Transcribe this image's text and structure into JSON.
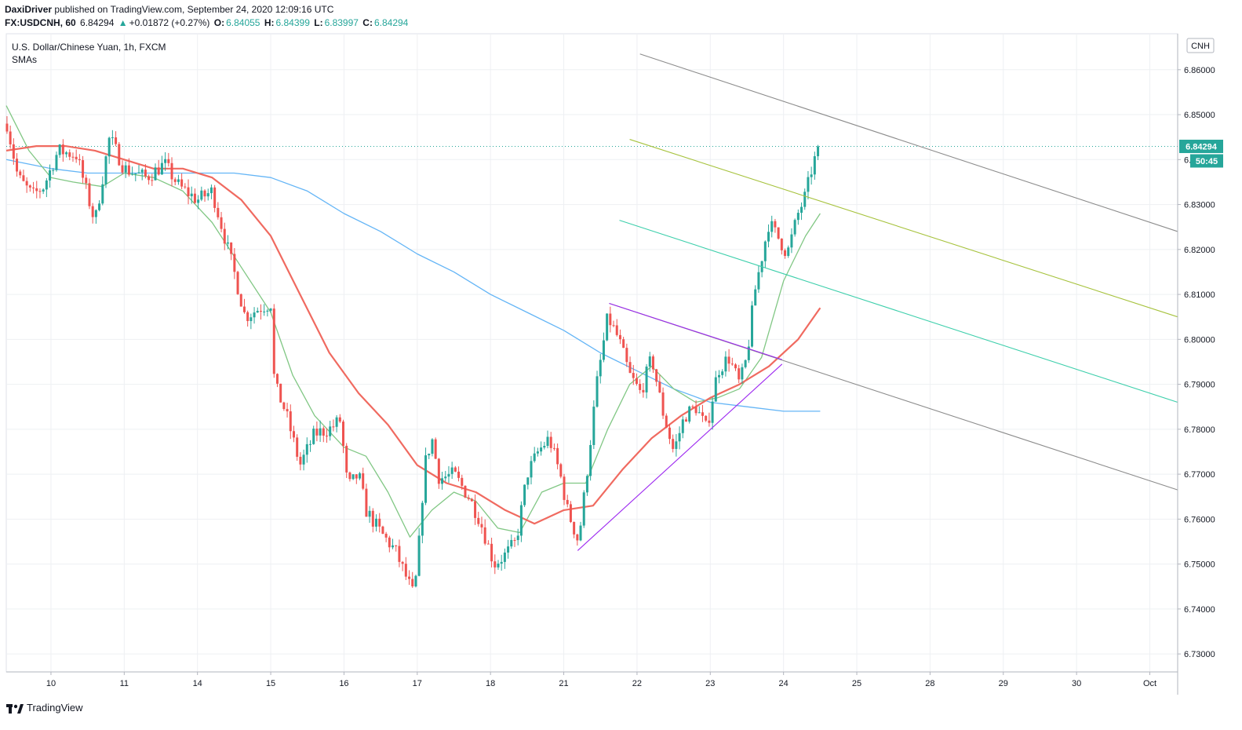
{
  "header": {
    "publisher": "DaxiDriver",
    "published_text": "published on TradingView.com, September 24, 2020 12:09:16 UTC",
    "symbol": "FX:USDCNH, 60",
    "last": "6.84294",
    "change_arrow": "▲",
    "change": "+0.01872 (+0.27%)",
    "o_label": "O:",
    "o_value": "6.84055",
    "h_label": "H:",
    "h_value": "6.84399",
    "l_label": "L:",
    "l_value": "6.83997",
    "c_label": "C:",
    "c_value": "6.84294"
  },
  "legend": {
    "title": "U.S. Dollar/Chinese Yuan, 1h, FXCM",
    "indicator": "SMAs"
  },
  "currency_badge": "CNH",
  "price_badge": "6.84294",
  "countdown_badge": "50:45",
  "footer": {
    "brand": "TradingView"
  },
  "colors": {
    "up": "#26a69a",
    "down": "#ef5350",
    "sma_fast": "#81c784",
    "sma_mid": "#f06a60",
    "sma_slow": "#64b5f6",
    "channel_outer": "#8c8c8c",
    "channel_upper_mid": "#a6c23c",
    "channel_lower_mid": "#3dcfab",
    "triangle": "#9c27f0",
    "grid": "#eef0f3"
  },
  "chart_data": {
    "type": "candlestick",
    "title": "U.S. Dollar/Chinese Yuan, 1h, FXCM",
    "ylim": [
      6.726,
      6.868
    ],
    "y_ticks": [
      6.73,
      6.74,
      6.75,
      6.76,
      6.77,
      6.78,
      6.79,
      6.8,
      6.81,
      6.82,
      6.83,
      6.84,
      6.85,
      6.86
    ],
    "x_ticks": [
      {
        "label": "10",
        "t": 1
      },
      {
        "label": "11",
        "t": 2
      },
      {
        "label": "14",
        "t": 3
      },
      {
        "label": "15",
        "t": 4
      },
      {
        "label": "16",
        "t": 5
      },
      {
        "label": "17",
        "t": 6
      },
      {
        "label": "18",
        "t": 7
      },
      {
        "label": "21",
        "t": 8
      },
      {
        "label": "22",
        "t": 9
      },
      {
        "label": "23",
        "t": 10
      },
      {
        "label": "24",
        "t": 11
      },
      {
        "label": "25",
        "t": 12
      },
      {
        "label": "28",
        "t": 13
      },
      {
        "label": "29",
        "t": 14
      },
      {
        "label": "30",
        "t": 15
      },
      {
        "label": "Oct",
        "t": 16
      }
    ],
    "xlim": [
      0.39,
      16.38
    ],
    "last_price": 6.84294,
    "price_path": [
      [
        0.4,
        6.848
      ],
      [
        0.55,
        6.836
      ],
      [
        0.75,
        6.832
      ],
      [
        0.9,
        6.834
      ],
      [
        1.1,
        6.842
      ],
      [
        1.35,
        6.841
      ],
      [
        1.6,
        6.826
      ],
      [
        1.8,
        6.845
      ],
      [
        2.0,
        6.838
      ],
      [
        2.3,
        6.836
      ],
      [
        2.55,
        6.839
      ],
      [
        2.75,
        6.834
      ],
      [
        3.0,
        6.831
      ],
      [
        3.2,
        6.833
      ],
      [
        3.35,
        6.824
      ],
      [
        3.5,
        6.815
      ],
      [
        3.65,
        6.805
      ],
      [
        3.85,
        6.807
      ],
      [
        4.0,
        6.808
      ],
      [
        4.05,
        6.79
      ],
      [
        4.2,
        6.784
      ],
      [
        4.4,
        6.772
      ],
      [
        4.6,
        6.779
      ],
      [
        4.8,
        6.78
      ],
      [
        4.95,
        6.782
      ],
      [
        5.05,
        6.767
      ],
      [
        5.2,
        6.77
      ],
      [
        5.3,
        6.762
      ],
      [
        5.5,
        6.757
      ],
      [
        5.7,
        6.753
      ],
      [
        5.85,
        6.747
      ],
      [
        5.95,
        6.743
      ],
      [
        6.0,
        6.749
      ],
      [
        6.1,
        6.772
      ],
      [
        6.2,
        6.778
      ],
      [
        6.3,
        6.769
      ],
      [
        6.5,
        6.77
      ],
      [
        6.7,
        6.765
      ],
      [
        6.85,
        6.76
      ],
      [
        6.95,
        6.755
      ],
      [
        7.05,
        6.75
      ],
      [
        7.2,
        6.752
      ],
      [
        7.35,
        6.755
      ],
      [
        7.5,
        6.77
      ],
      [
        7.65,
        6.775
      ],
      [
        7.8,
        6.778
      ],
      [
        7.95,
        6.77
      ],
      [
        8.05,
        6.762
      ],
      [
        8.2,
        6.755
      ],
      [
        8.3,
        6.768
      ],
      [
        8.45,
        6.79
      ],
      [
        8.6,
        6.805
      ],
      [
        8.75,
        6.8
      ],
      [
        8.9,
        6.792
      ],
      [
        9.05,
        6.788
      ],
      [
        9.2,
        6.796
      ],
      [
        9.35,
        6.784
      ],
      [
        9.5,
        6.775
      ],
      [
        9.65,
        6.783
      ],
      [
        9.8,
        6.785
      ],
      [
        9.95,
        6.78
      ],
      [
        10.1,
        6.793
      ],
      [
        10.25,
        6.796
      ],
      [
        10.4,
        6.79
      ],
      [
        10.5,
        6.796
      ],
      [
        10.6,
        6.81
      ],
      [
        10.7,
        6.818
      ],
      [
        10.8,
        6.826
      ],
      [
        10.95,
        6.822
      ],
      [
        11.05,
        6.819
      ],
      [
        11.2,
        6.828
      ],
      [
        11.3,
        6.832
      ],
      [
        11.4,
        6.839
      ],
      [
        11.5,
        6.843
      ]
    ],
    "sma_fast": [
      [
        0.39,
        6.852
      ],
      [
        0.7,
        6.842
      ],
      [
        1.0,
        6.836
      ],
      [
        1.3,
        6.835
      ],
      [
        1.7,
        6.834
      ],
      [
        2.0,
        6.837
      ],
      [
        2.4,
        6.836
      ],
      [
        2.8,
        6.833
      ],
      [
        3.2,
        6.826
      ],
      [
        3.6,
        6.816
      ],
      [
        4.0,
        6.806
      ],
      [
        4.3,
        6.792
      ],
      [
        4.6,
        6.783
      ],
      [
        5.0,
        6.776
      ],
      [
        5.3,
        6.774
      ],
      [
        5.6,
        6.766
      ],
      [
        5.9,
        6.756
      ],
      [
        6.2,
        6.762
      ],
      [
        6.5,
        6.766
      ],
      [
        6.8,
        6.764
      ],
      [
        7.1,
        6.758
      ],
      [
        7.4,
        6.757
      ],
      [
        7.7,
        6.766
      ],
      [
        8.0,
        6.768
      ],
      [
        8.3,
        6.768
      ],
      [
        8.6,
        6.78
      ],
      [
        8.9,
        6.79
      ],
      [
        9.2,
        6.794
      ],
      [
        9.5,
        6.789
      ],
      [
        9.8,
        6.786
      ],
      [
        10.1,
        6.787
      ],
      [
        10.4,
        6.789
      ],
      [
        10.7,
        6.796
      ],
      [
        11.0,
        6.813
      ],
      [
        11.3,
        6.823
      ],
      [
        11.5,
        6.828
      ]
    ],
    "sma_mid": [
      [
        0.39,
        6.842
      ],
      [
        0.8,
        6.843
      ],
      [
        1.2,
        6.843
      ],
      [
        1.6,
        6.842
      ],
      [
        2.0,
        6.84
      ],
      [
        2.4,
        6.838
      ],
      [
        2.8,
        6.838
      ],
      [
        3.2,
        6.836
      ],
      [
        3.6,
        6.831
      ],
      [
        4.0,
        6.823
      ],
      [
        4.4,
        6.81
      ],
      [
        4.8,
        6.797
      ],
      [
        5.2,
        6.788
      ],
      [
        5.6,
        6.781
      ],
      [
        6.0,
        6.772
      ],
      [
        6.4,
        6.768
      ],
      [
        6.8,
        6.766
      ],
      [
        7.2,
        6.762
      ],
      [
        7.6,
        6.759
      ],
      [
        8.0,
        6.762
      ],
      [
        8.4,
        6.763
      ],
      [
        8.8,
        6.771
      ],
      [
        9.2,
        6.778
      ],
      [
        9.6,
        6.783
      ],
      [
        10.0,
        6.787
      ],
      [
        10.4,
        6.79
      ],
      [
        10.8,
        6.794
      ],
      [
        11.2,
        6.8
      ],
      [
        11.5,
        6.807
      ]
    ],
    "sma_slow": [
      [
        0.39,
        6.84
      ],
      [
        1.0,
        6.838
      ],
      [
        1.5,
        6.837
      ],
      [
        2.0,
        6.837
      ],
      [
        2.5,
        6.837
      ],
      [
        3.0,
        6.837
      ],
      [
        3.5,
        6.837
      ],
      [
        4.0,
        6.836
      ],
      [
        4.5,
        6.833
      ],
      [
        5.0,
        6.828
      ],
      [
        5.5,
        6.824
      ],
      [
        6.0,
        6.819
      ],
      [
        6.5,
        6.815
      ],
      [
        7.0,
        6.81
      ],
      [
        7.5,
        6.806
      ],
      [
        8.0,
        6.802
      ],
      [
        8.5,
        6.797
      ],
      [
        9.0,
        6.793
      ],
      [
        9.5,
        6.789
      ],
      [
        10.0,
        6.786
      ],
      [
        10.5,
        6.785
      ],
      [
        11.0,
        6.784
      ],
      [
        11.5,
        6.784
      ]
    ],
    "drawings": [
      {
        "name": "channel-upper-line",
        "color_key": "channel_outer",
        "p1": [
          9.04,
          6.8635
        ],
        "p2": [
          16.38,
          6.824
        ]
      },
      {
        "name": "channel-upper-mid-line",
        "color_key": "channel_upper_mid",
        "p1": [
          8.9,
          6.8445
        ],
        "p2": [
          16.38,
          6.805
        ]
      },
      {
        "name": "channel-lower-mid-line",
        "color_key": "channel_lower_mid",
        "p1": [
          8.76,
          6.8265
        ],
        "p2": [
          16.38,
          6.786
        ]
      },
      {
        "name": "channel-lower-line",
        "color_key": "channel_outer",
        "p1": [
          8.62,
          6.808
        ],
        "p2": [
          16.38,
          6.7665
        ]
      },
      {
        "name": "triangle-top-line",
        "color_key": "triangle",
        "p1": [
          8.62,
          6.808
        ],
        "p2": [
          10.98,
          6.7955
        ]
      },
      {
        "name": "triangle-bottom-line",
        "color_key": "triangle",
        "p1": [
          8.19,
          6.753
        ],
        "p2": [
          10.98,
          6.7945
        ]
      }
    ]
  }
}
